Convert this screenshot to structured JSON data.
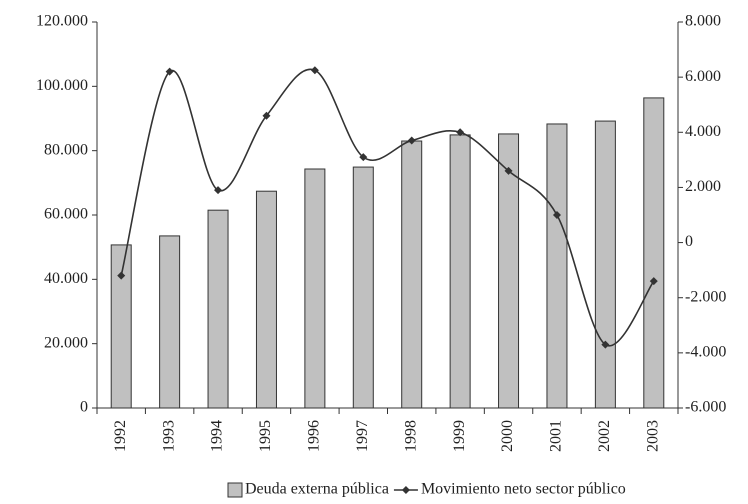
{
  "chart_data": {
    "type": "bar-line",
    "categories": [
      "1992",
      "1993",
      "1994",
      "1995",
      "1996",
      "1997",
      "1998",
      "1999",
      "2000",
      "2001",
      "2002",
      "2003"
    ],
    "series": [
      {
        "name": "Deuda externa pública",
        "type": "bar",
        "color": "#c0c0c0",
        "values": [
          50700,
          53500,
          61500,
          67400,
          74300,
          74900,
          83000,
          84900,
          85200,
          88300,
          89200,
          96400
        ]
      },
      {
        "name": "Movimiento neto sector público",
        "type": "line",
        "axis": "y2",
        "color": "#333333",
        "values": [
          -1200,
          6200,
          1900,
          4600,
          6250,
          3100,
          3700,
          4000,
          2600,
          1000,
          -3700,
          -1400
        ]
      }
    ],
    "ylim": [
      0,
      120000
    ],
    "yticks": [
      0,
      {
        "value": 20000,
        "label": "20.000"
      },
      {
        "value": 40000,
        "label": "40.000"
      },
      {
        "value": 60000,
        "label": "60.000"
      },
      {
        "value": 80000,
        "label": "80.000"
      },
      {
        "value": 100000,
        "label": "100.000"
      },
      {
        "value": 120000,
        "label": "120.000"
      }
    ],
    "y2lim": [
      -6000,
      8000
    ],
    "y2ticks": [
      {
        "value": -6000,
        "label": "-6.000"
      },
      {
        "value": -4000,
        "label": "-4.000"
      },
      {
        "value": -2000,
        "label": "-2.000"
      },
      0,
      {
        "value": 2000,
        "label": "2.000"
      },
      {
        "value": 4000,
        "label": "4.000"
      },
      {
        "value": 6000,
        "label": "6.000"
      },
      {
        "value": 8000,
        "label": "8.000"
      }
    ],
    "legend": "bottom"
  }
}
